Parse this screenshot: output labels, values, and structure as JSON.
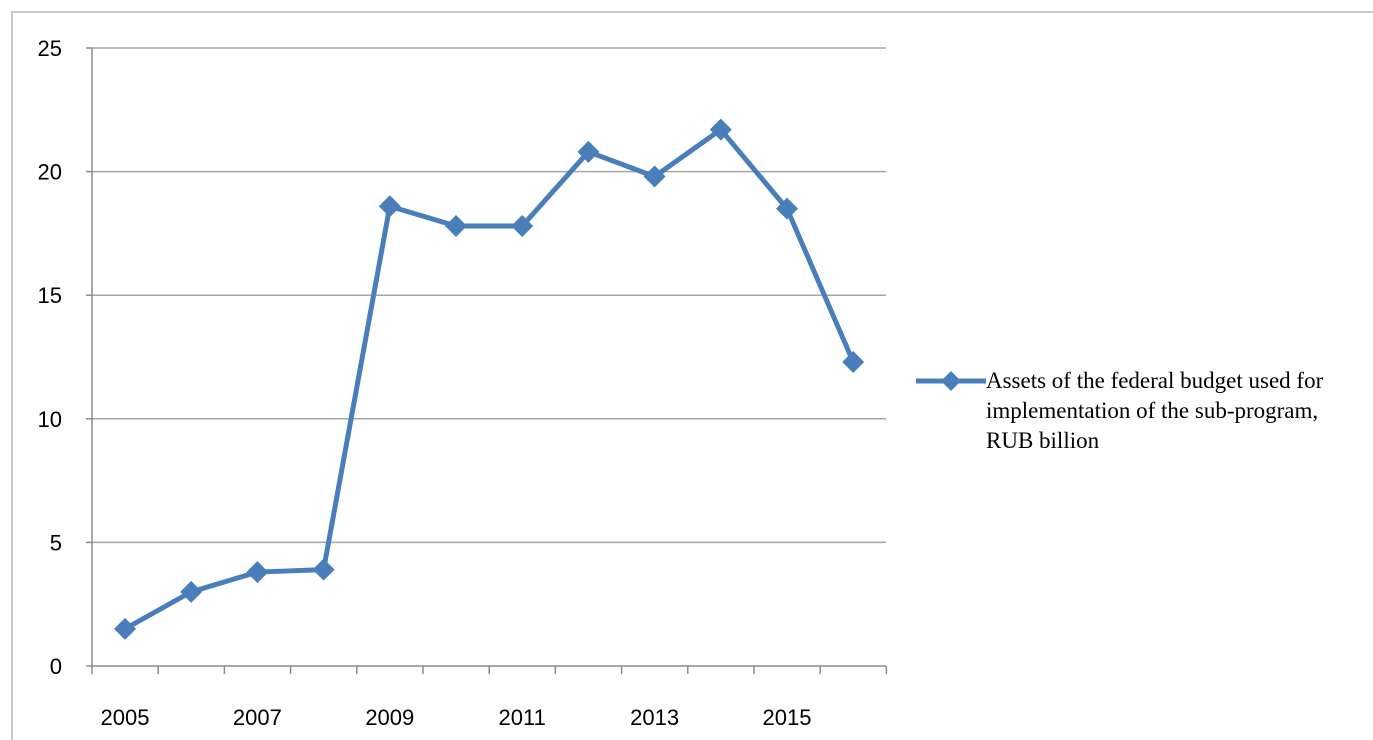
{
  "chart_data": {
    "type": "line",
    "x": [
      2005,
      2006,
      2007,
      2008,
      2009,
      2010,
      2011,
      2012,
      2013,
      2014,
      2015,
      2016
    ],
    "x_tick_labels": [
      "2005",
      "2007",
      "2009",
      "2011",
      "2013",
      "2015"
    ],
    "y_tick_labels": [
      "0",
      "5",
      "10",
      "15",
      "20",
      "25"
    ],
    "ylim": [
      0,
      25
    ],
    "grid": "horizontal",
    "legend_placement": "right",
    "series": [
      {
        "name": "Assets of the federal budget used for implementation of the sub-program, RUB billion",
        "values": [
          1.5,
          3.0,
          3.8,
          3.9,
          18.6,
          17.8,
          17.8,
          20.8,
          19.8,
          21.7,
          18.5,
          12.3
        ],
        "color": "#4a7ebb",
        "marker": "diamond"
      }
    ]
  }
}
